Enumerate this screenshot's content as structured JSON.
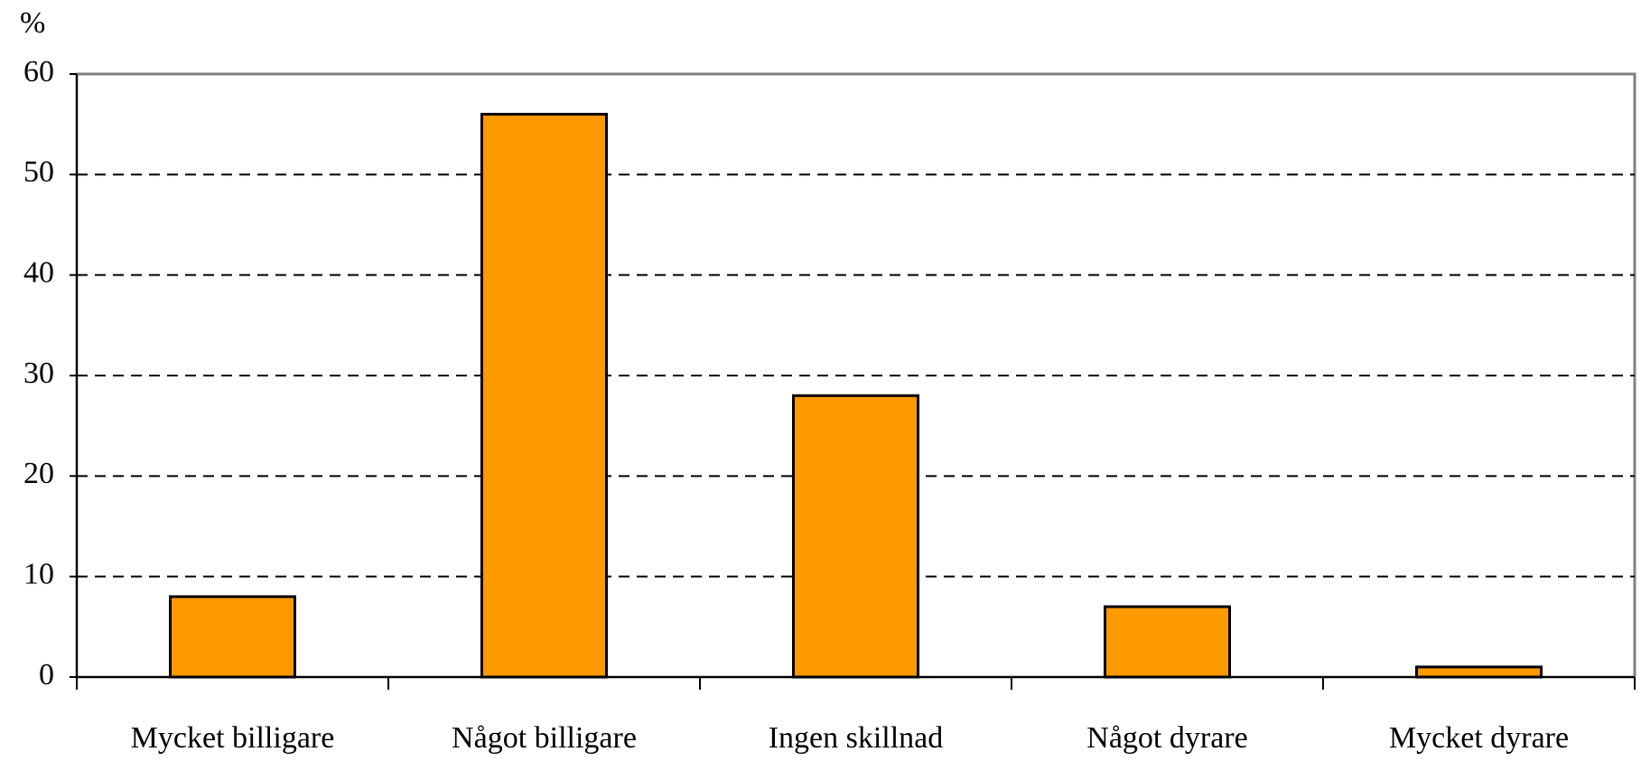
{
  "chart_data": {
    "type": "bar",
    "y_label": "%",
    "categories": [
      "Mycket billigare",
      "Något billigare",
      "Ingen skillnad",
      "Något dyrare",
      "Mycket dyrare"
    ],
    "values": [
      8,
      56,
      28,
      7,
      1
    ],
    "color": "#ff9900",
    "ylim": [
      0,
      60
    ],
    "yticks": [
      0,
      10,
      20,
      30,
      40,
      50,
      60
    ],
    "grid": true
  }
}
